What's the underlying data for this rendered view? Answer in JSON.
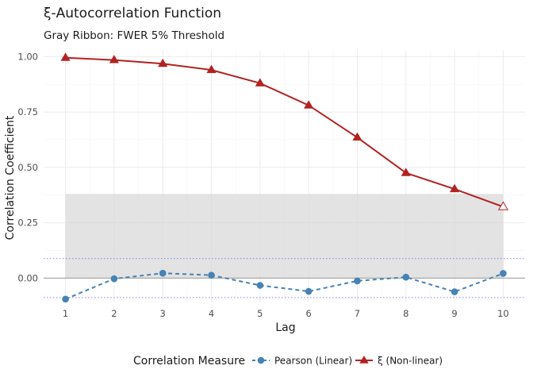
{
  "chart_data": {
    "type": "line",
    "title": "ξ-Autocorrelation Function",
    "subtitle": "Gray Ribbon: FWER 5% Threshold",
    "xlabel": "Lag",
    "ylabel": "Correlation Coefficient",
    "x": [
      1,
      2,
      3,
      4,
      5,
      6,
      7,
      8,
      9,
      10
    ],
    "xticks": [
      "1",
      "2",
      "3",
      "4",
      "5",
      "6",
      "7",
      "8",
      "9",
      "10"
    ],
    "yticks": [
      "0.00",
      "0.25",
      "0.50",
      "0.75",
      "1.00"
    ],
    "ytick_values": [
      0.0,
      0.25,
      0.5,
      0.75,
      1.0
    ],
    "xlim": [
      0.55,
      10.45
    ],
    "ylim": [
      -0.11,
      1.03
    ],
    "grid": true,
    "legend_position": "bottom",
    "legend_title": "Correlation Measure",
    "ribbon": {
      "ymin": 0.0,
      "ymax": 0.38,
      "color": "#d9d9d9"
    },
    "reference_lines": {
      "values": [
        0.088,
        -0.088
      ],
      "color": "#8080ff",
      "style": "dotted"
    },
    "series": [
      {
        "name": "Pearson (Linear)",
        "color": "#4682b4",
        "marker": "circle",
        "line_style": "dashed",
        "values": [
          -0.095,
          -0.003,
          0.022,
          0.013,
          -0.033,
          -0.06,
          -0.013,
          0.004,
          -0.062,
          0.021
        ]
      },
      {
        "name": "ξ (Non-linear)",
        "color": "#b22222",
        "marker": "triangle",
        "line_style": "solid",
        "values": [
          0.995,
          0.985,
          0.968,
          0.94,
          0.88,
          0.78,
          0.635,
          0.475,
          0.402,
          0.322
        ]
      }
    ]
  }
}
